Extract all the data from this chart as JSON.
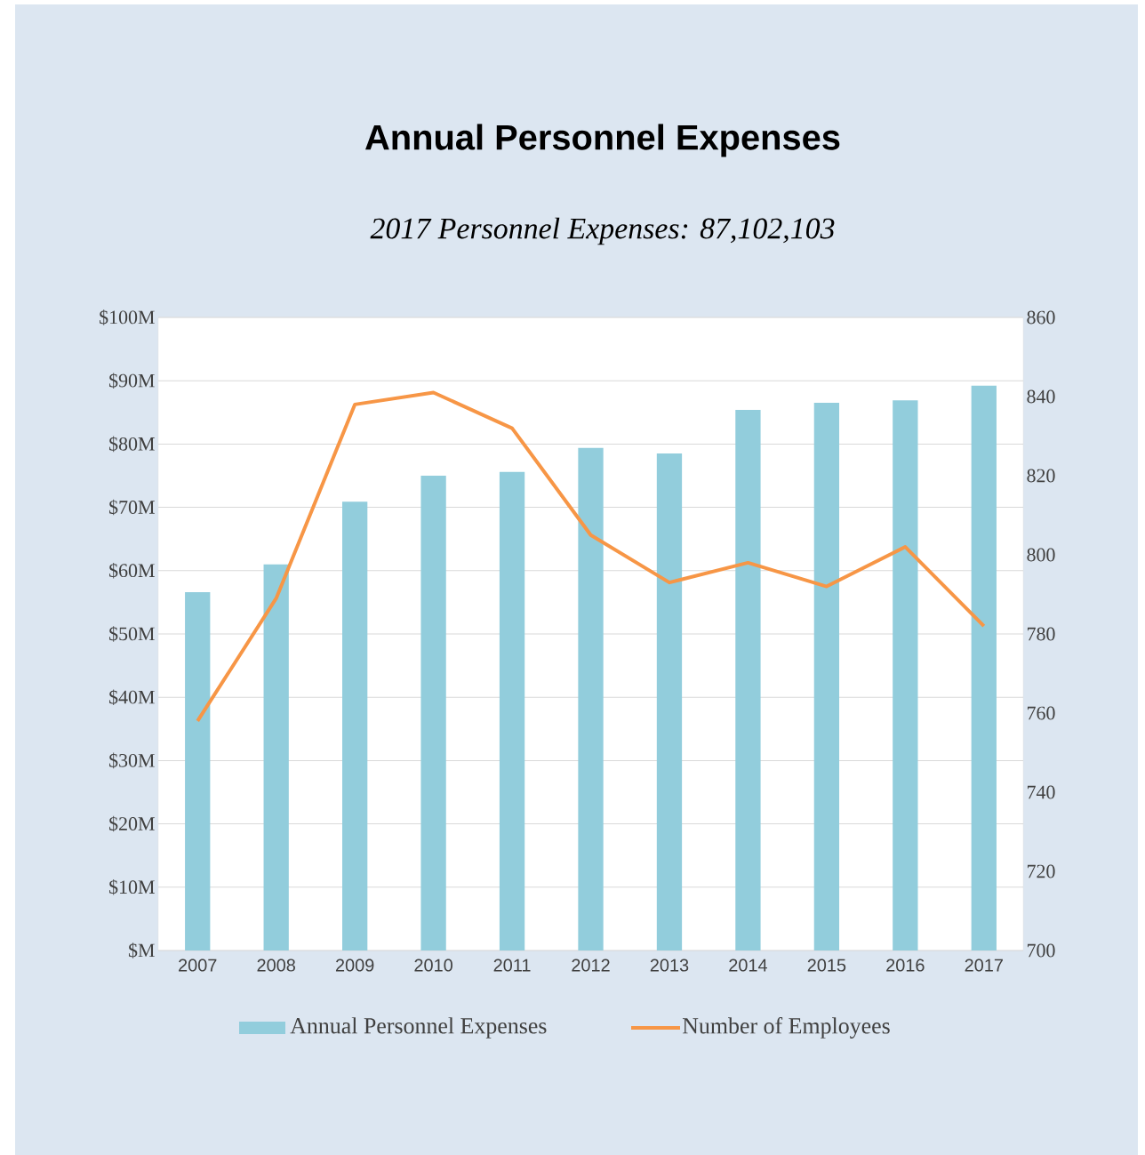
{
  "chart_data": {
    "type": "bar",
    "title": "Annual Personnel Expenses",
    "subtitle": "2017 Personnel Expenses: 87,102,103",
    "categories": [
      "2007",
      "2008",
      "2009",
      "2010",
      "2011",
      "2012",
      "2013",
      "2014",
      "2015",
      "2016",
      "2017"
    ],
    "series": [
      {
        "name": "Annual Personnel Expenses",
        "color": "#92cddc",
        "values": [
          56.6,
          61.0,
          70.9,
          75.0,
          75.6,
          79.4,
          78.5,
          85.4,
          86.5,
          86.9,
          89.2
        ]
      },
      {
        "name": "Number of Employees",
        "type": "line",
        "axis": "y2",
        "color": "#f79646",
        "values": [
          758,
          789,
          838,
          841,
          832,
          805,
          793,
          798,
          792,
          802,
          782
        ]
      }
    ],
    "ylim": [
      0,
      100
    ],
    "yticks": [
      {
        "value": 0,
        "label": "$M"
      },
      {
        "value": 10,
        "label": "$10M"
      },
      {
        "value": 20,
        "label": "$20M"
      },
      {
        "value": 30,
        "label": "$30M"
      },
      {
        "value": 40,
        "label": "$40M"
      },
      {
        "value": 50,
        "label": "$50M"
      },
      {
        "value": 60,
        "label": "$60M"
      },
      {
        "value": 70,
        "label": "$70M"
      },
      {
        "value": 80,
        "label": "$80M"
      },
      {
        "value": 90,
        "label": "$90M"
      },
      {
        "value": 100,
        "label": "$100M"
      }
    ],
    "y2lim": [
      700,
      860
    ],
    "y2ticks": [
      700,
      720,
      740,
      760,
      780,
      800,
      820,
      840,
      860
    ],
    "grid": "y",
    "legend": "bottom"
  }
}
